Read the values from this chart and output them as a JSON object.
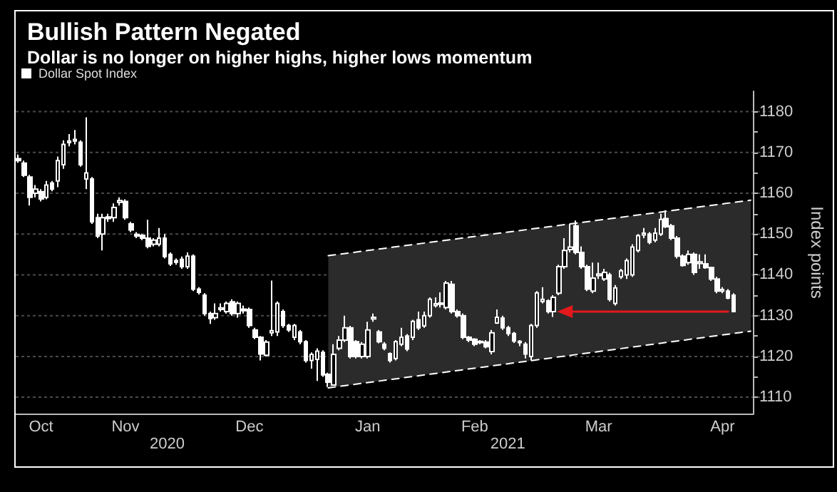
{
  "chart_data": {
    "type": "candlestick",
    "title": "Bullish Pattern Negated",
    "subtitle": "Dollar is no longer on higher highs, higher lows momentum",
    "ylabel": "Index points",
    "categories": [
      null,
      null,
      null,
      null,
      "Oct",
      null,
      null,
      null,
      null,
      null,
      null,
      null,
      null,
      null,
      null,
      null,
      null,
      null,
      null,
      "Nov",
      null,
      null,
      null,
      null,
      null,
      null,
      null,
      null,
      null,
      null,
      null,
      null,
      null,
      null,
      null,
      null,
      null,
      null,
      null,
      null,
      null,
      "Dec",
      null,
      null,
      null,
      null,
      null,
      null,
      null,
      null,
      null,
      null,
      null,
      null,
      null,
      null,
      null,
      null,
      null,
      null,
      null,
      null,
      "Jan",
      null,
      null,
      null,
      null,
      null,
      null,
      null,
      null,
      null,
      null,
      null,
      null,
      null,
      null,
      null,
      null,
      null,
      null,
      "Feb",
      null,
      null,
      null,
      null,
      null,
      null,
      null,
      null,
      null,
      null,
      null,
      null,
      null,
      null,
      null,
      null,
      null,
      null,
      null,
      null,
      null,
      "Mar",
      null,
      null,
      null,
      null,
      null,
      null,
      null,
      null,
      null,
      null,
      null,
      null,
      null,
      null,
      null,
      null,
      null,
      null,
      null,
      null,
      null,
      "Apr",
      null,
      null,
      null,
      null,
      null
    ],
    "series": [
      {
        "name": "Dollar Spot Index",
        "color": "#ffffff",
        "ohlc": [
          [
            1168.5,
            1169.5,
            1167.5,
            1168
          ],
          [
            1167.4,
            1168,
            1164,
            1164.4
          ],
          [
            1164,
            1164.5,
            1157,
            1159
          ],
          [
            1160,
            1162,
            1159,
            1161
          ],
          [
            1160.4,
            1161,
            1158,
            1158.6
          ],
          [
            1159,
            1163,
            1158.5,
            1162
          ],
          [
            1162.5,
            1163,
            1160.5,
            1161
          ],
          [
            1163,
            1169,
            1161.5,
            1168
          ],
          [
            1167,
            1173,
            1166,
            1172
          ],
          [
            1172.4,
            1174.5,
            1171.5,
            1172.8
          ],
          [
            1172.8,
            1175.5,
            1172,
            1173.2
          ],
          [
            1172.5,
            1173,
            1166.5,
            1167
          ],
          [
            1163.5,
            1178.6,
            1161,
            1165
          ],
          [
            1163.5,
            1164,
            1152.5,
            1153
          ],
          [
            1154,
            1155,
            1149,
            1149.5
          ],
          [
            1150,
            1155,
            1146,
            1154
          ],
          [
            1154.2,
            1155,
            1153,
            1153.8
          ],
          [
            1154,
            1157.5,
            1153,
            1156.5
          ],
          [
            1157.8,
            1159,
            1157,
            1158.2
          ],
          [
            1158,
            1158.5,
            1153.5,
            1154
          ],
          [
            1152.5,
            1153,
            1150.5,
            1151
          ],
          [
            1149.9,
            1150.5,
            1149,
            1149.5
          ],
          [
            1149.7,
            1150,
            1148.5,
            1149
          ],
          [
            1149,
            1153.5,
            1146.5,
            1147
          ],
          [
            1147.5,
            1149,
            1147,
            1148.5
          ],
          [
            1147.5,
            1151.5,
            1147,
            1149
          ],
          [
            1149,
            1150,
            1144,
            1144.5
          ],
          [
            1145,
            1145.5,
            1142.2,
            1142.7
          ],
          [
            1143.5,
            1144,
            1142.5,
            1143.1
          ],
          [
            1143.8,
            1144.5,
            1141.5,
            1142
          ],
          [
            1142,
            1145.5,
            1141.5,
            1144.6
          ],
          [
            1144.6,
            1145,
            1136,
            1136.5
          ],
          [
            1136.5,
            1137,
            1135.2,
            1135.7
          ],
          [
            1135,
            1135.5,
            1130,
            1130.5
          ],
          [
            1130.5,
            1131,
            1128,
            1129.3
          ],
          [
            1129.5,
            1133,
            1129,
            1130.5
          ],
          [
            1131.5,
            1133,
            1131,
            1131.9
          ],
          [
            1131,
            1133.5,
            1130.5,
            1133
          ],
          [
            1133.4,
            1134,
            1130,
            1130.5
          ],
          [
            1130.5,
            1133.5,
            1129.5,
            1133
          ],
          [
            1131.6,
            1132.5,
            1130.5,
            1131.2
          ],
          [
            1131.5,
            1132,
            1127,
            1127.6
          ],
          [
            1126.5,
            1127,
            1124.2,
            1124.7
          ],
          [
            1124.7,
            1125,
            1119,
            1120.6
          ],
          [
            1120.3,
            1124,
            1120,
            1123.5
          ],
          [
            1125.8,
            1138.6,
            1125,
            1126.3
          ],
          [
            1126,
            1133.5,
            1125,
            1133
          ],
          [
            1131,
            1131.5,
            1127,
            1127.6
          ],
          [
            1127.6,
            1128,
            1126,
            1126.5
          ],
          [
            1124.7,
            1128,
            1124,
            1127.6
          ],
          [
            1126,
            1126.5,
            1123,
            1123.6
          ],
          [
            1123.6,
            1124,
            1118.5,
            1119
          ],
          [
            1119,
            1121,
            1117,
            1120.5
          ],
          [
            1119.3,
            1122,
            1114,
            1121.3
          ],
          [
            1121,
            1121.5,
            1115,
            1115.5
          ],
          [
            1115.6,
            1116,
            1112.5,
            1113.7
          ],
          [
            1113,
            1123,
            1112.8,
            1120.5
          ],
          [
            1122,
            1125,
            1121.5,
            1124
          ],
          [
            1124,
            1130,
            1123.5,
            1127
          ],
          [
            1127,
            1127.5,
            1119.5,
            1120
          ],
          [
            1123.6,
            1124,
            1119.5,
            1120
          ],
          [
            1120,
            1123.5,
            1119.5,
            1123
          ],
          [
            1120,
            1128.5,
            1119.5,
            1126.5
          ],
          [
            1129.2,
            1130.5,
            1128.5,
            1129.6
          ],
          [
            1126,
            1126.5,
            1123.2,
            1123.6
          ],
          [
            1123,
            1123.5,
            1121.5,
            1122
          ],
          [
            1120.7,
            1121,
            1118.5,
            1119
          ],
          [
            1119.5,
            1124,
            1119,
            1123.6
          ],
          [
            1123,
            1127,
            1122.5,
            1124.7
          ],
          [
            1125,
            1125.5,
            1121.3,
            1121.8
          ],
          [
            1124.7,
            1129,
            1124,
            1128.6
          ],
          [
            1129,
            1131,
            1126.5,
            1127
          ],
          [
            1127.5,
            1131,
            1127,
            1130
          ],
          [
            1130,
            1134.5,
            1129.5,
            1134
          ],
          [
            1132.5,
            1134.5,
            1132,
            1132.9
          ],
          [
            1132.8,
            1135.7,
            1132,
            1133.1
          ],
          [
            1132,
            1138.5,
            1131.5,
            1138
          ],
          [
            1137.7,
            1138.5,
            1130.5,
            1131
          ],
          [
            1131,
            1131.5,
            1129.5,
            1130
          ],
          [
            1130,
            1130.5,
            1124.2,
            1124.7
          ],
          [
            1124.7,
            1125,
            1123.5,
            1124
          ],
          [
            1124.2,
            1124.5,
            1122.5,
            1123
          ],
          [
            1123.4,
            1124,
            1123,
            1123.7
          ],
          [
            1123.5,
            1124,
            1122,
            1122.4
          ],
          [
            1121.2,
            1126.5,
            1120.5,
            1125.8
          ],
          [
            1128.2,
            1131.5,
            1128,
            1129.6
          ],
          [
            1129.4,
            1130,
            1126.5,
            1127
          ],
          [
            1127,
            1127.5,
            1125,
            1125.6
          ],
          [
            1125.6,
            1126,
            1123.3,
            1123.8
          ],
          [
            1123.4,
            1124,
            1122.5,
            1123.7
          ],
          [
            1123,
            1123.5,
            1119.5,
            1120.6
          ],
          [
            1120,
            1128,
            1119,
            1127.6
          ],
          [
            1127.6,
            1136,
            1127,
            1135.6
          ],
          [
            1133.5,
            1137,
            1133,
            1134
          ],
          [
            1133.6,
            1134,
            1130.5,
            1131
          ],
          [
            1131,
            1135,
            1129.7,
            1134.5
          ],
          [
            1135.5,
            1142.5,
            1135,
            1142
          ],
          [
            1142,
            1149,
            1141.5,
            1146
          ],
          [
            1146.2,
            1152.5,
            1145.5,
            1146.8
          ],
          [
            1152,
            1153.3,
            1145,
            1145.5
          ],
          [
            1145.5,
            1147,
            1141.5,
            1142
          ],
          [
            1142,
            1142.5,
            1136,
            1136.5
          ],
          [
            1136,
            1143,
            1135.5,
            1139.2
          ],
          [
            1139.8,
            1143,
            1139,
            1140.2
          ],
          [
            1139,
            1141.5,
            1138.5,
            1140.6
          ],
          [
            1140,
            1140.5,
            1133.5,
            1134
          ],
          [
            1133,
            1137.5,
            1132.5,
            1136.8
          ],
          [
            1139.5,
            1141.5,
            1139,
            1141
          ],
          [
            1140,
            1144,
            1139,
            1143.5
          ],
          [
            1140,
            1147.5,
            1139.5,
            1146.8
          ],
          [
            1146,
            1150,
            1145.5,
            1149.6
          ],
          [
            1149.8,
            1151.5,
            1149,
            1150.2
          ],
          [
            1150,
            1150.5,
            1147.5,
            1148
          ],
          [
            1148.5,
            1151.5,
            1148,
            1150.2
          ],
          [
            1150,
            1155,
            1149.5,
            1153.6
          ],
          [
            1153.8,
            1155.8,
            1151.5,
            1151.8
          ],
          [
            1152,
            1152.5,
            1148.5,
            1149
          ],
          [
            1149,
            1149.5,
            1144,
            1144.6
          ],
          [
            1144.6,
            1145,
            1142,
            1142.3
          ],
          [
            1143,
            1146,
            1142.5,
            1145
          ],
          [
            1145,
            1145.5,
            1140,
            1140.6
          ],
          [
            1142.8,
            1145,
            1141.5,
            1143.2
          ],
          [
            1142.7,
            1145,
            1141.5,
            1141.8
          ],
          [
            1141.8,
            1142,
            1138.5,
            1139
          ],
          [
            1139,
            1139.5,
            1135.5,
            1136
          ],
          [
            1136,
            1137,
            1135.5,
            1136.4
          ],
          [
            1136,
            1136.5,
            1134,
            1134.3
          ],
          [
            1135,
            1135.5,
            1130.8,
            1131
          ],
          null,
          null,
          null
        ]
      },
      {
        "type": "line",
        "color": "#ffffff",
        "line_style": "dashed",
        "values": [
          null,
          null,
          null,
          null,
          null,
          null,
          null,
          null,
          null,
          null,
          null,
          null,
          null,
          null,
          null,
          null,
          null,
          null,
          null,
          null,
          null,
          null,
          null,
          null,
          null,
          null,
          null,
          null,
          null,
          null,
          null,
          null,
          null,
          null,
          null,
          null,
          null,
          null,
          null,
          null,
          null,
          null,
          null,
          null,
          null,
          null,
          null,
          null,
          null,
          null,
          null,
          null,
          null,
          null,
          null,
          1144.7,
          null,
          null,
          null,
          null,
          null,
          null,
          null,
          null,
          null,
          null,
          null,
          null,
          null,
          null,
          null,
          null,
          null,
          null,
          null,
          null,
          null,
          null,
          null,
          null,
          null,
          null,
          null,
          null,
          null,
          null,
          null,
          null,
          null,
          null,
          null,
          null,
          null,
          null,
          null,
          null,
          null,
          null,
          null,
          null,
          null,
          null,
          null,
          null,
          null,
          null,
          null,
          null,
          null,
          null,
          null,
          null,
          null,
          null,
          null,
          null,
          null,
          null,
          null,
          null,
          null,
          null,
          null,
          null,
          null,
          null,
          null,
          null,
          null,
          null,
          1158.3
        ]
      },
      {
        "type": "line",
        "color": "#ffffff",
        "line_style": "dashed",
        "values": [
          null,
          null,
          null,
          null,
          null,
          null,
          null,
          null,
          null,
          null,
          null,
          null,
          null,
          null,
          null,
          null,
          null,
          null,
          null,
          null,
          null,
          null,
          null,
          null,
          null,
          null,
          null,
          null,
          null,
          null,
          null,
          null,
          null,
          null,
          null,
          null,
          null,
          null,
          null,
          null,
          null,
          null,
          null,
          null,
          null,
          null,
          null,
          null,
          null,
          null,
          null,
          null,
          null,
          null,
          null,
          1112.3,
          null,
          null,
          null,
          null,
          null,
          null,
          null,
          null,
          null,
          null,
          null,
          null,
          null,
          null,
          null,
          null,
          null,
          null,
          null,
          null,
          null,
          null,
          null,
          null,
          null,
          null,
          null,
          null,
          null,
          null,
          null,
          null,
          null,
          null,
          null,
          null,
          null,
          null,
          null,
          null,
          null,
          null,
          null,
          null,
          null,
          null,
          null,
          null,
          null,
          null,
          null,
          null,
          null,
          null,
          null,
          null,
          null,
          null,
          null,
          null,
          null,
          null,
          null,
          null,
          null,
          null,
          null,
          null,
          null,
          null,
          null,
          null,
          null,
          null,
          1126.2
        ],
        "lower": [
          null,
          null,
          null,
          null,
          null,
          null,
          null,
          null,
          null,
          null,
          null,
          null,
          null,
          null,
          null,
          null,
          null,
          null,
          null,
          null,
          null,
          null,
          null,
          null,
          null,
          null,
          null,
          null,
          null,
          null,
          null,
          null,
          null,
          null,
          null,
          null,
          null,
          null,
          null,
          null,
          null,
          null,
          null,
          null,
          null,
          null,
          null,
          null,
          null,
          null,
          null,
          null,
          null,
          null,
          null,
          1112.3,
          null,
          null,
          null,
          null,
          null,
          null,
          null,
          null,
          null,
          null,
          null,
          null,
          null,
          null,
          null,
          null,
          null,
          null,
          null,
          null,
          null,
          null,
          null,
          null,
          null,
          null,
          null,
          null,
          null,
          null,
          null,
          null,
          null,
          null,
          null,
          null,
          null,
          null,
          null,
          null,
          null,
          null,
          null,
          null,
          null,
          null,
          null,
          null,
          null,
          null,
          null,
          null,
          null,
          null,
          null,
          null,
          null,
          null,
          null,
          null,
          null,
          null,
          null,
          null,
          null,
          null,
          null,
          null,
          null,
          null,
          null,
          null,
          null,
          null,
          1126.2
        ],
        "upper": [
          null,
          null,
          null,
          null,
          null,
          null,
          null,
          null,
          null,
          null,
          null,
          null,
          null,
          null,
          null,
          null,
          null,
          null,
          null,
          null,
          null,
          null,
          null,
          null,
          null,
          null,
          null,
          null,
          null,
          null,
          null,
          null,
          null,
          null,
          null,
          null,
          null,
          null,
          null,
          null,
          null,
          null,
          null,
          null,
          null,
          null,
          null,
          null,
          null,
          null,
          null,
          null,
          null,
          null,
          null,
          1144.7,
          null,
          null,
          null,
          null,
          null,
          null,
          null,
          null,
          null,
          null,
          null,
          null,
          null,
          null,
          null,
          null,
          null,
          null,
          null,
          null,
          null,
          null,
          null,
          null,
          null,
          null,
          null,
          null,
          null,
          null,
          null,
          null,
          null,
          null,
          null,
          null,
          null,
          null,
          null,
          null,
          null,
          null,
          null,
          null,
          null,
          null,
          null,
          null,
          null,
          null,
          null,
          null,
          null,
          null,
          null,
          null,
          null,
          null,
          null,
          null,
          null,
          null,
          null,
          null,
          null,
          null,
          null,
          null,
          null,
          null,
          null,
          null,
          null,
          null,
          1158.3
        ]
      },
      {
        "type": "line",
        "color": "#e3191c",
        "line_style": "solid",
        "marker": "triangle",
        "values": [
          null,
          null,
          null,
          null,
          null,
          null,
          null,
          null,
          null,
          null,
          null,
          null,
          null,
          null,
          null,
          null,
          null,
          null,
          null,
          null,
          null,
          null,
          null,
          null,
          null,
          null,
          null,
          null,
          null,
          null,
          null,
          null,
          null,
          null,
          null,
          null,
          null,
          null,
          null,
          null,
          null,
          null,
          null,
          null,
          null,
          null,
          null,
          null,
          null,
          null,
          null,
          null,
          null,
          null,
          null,
          null,
          null,
          null,
          null,
          null,
          null,
          null,
          null,
          null,
          null,
          null,
          null,
          null,
          null,
          null,
          null,
          null,
          null,
          null,
          null,
          null,
          null,
          null,
          null,
          null,
          null,
          null,
          null,
          null,
          null,
          null,
          null,
          null,
          null,
          null,
          null,
          null,
          null,
          null,
          null,
          null,
          null,
          1131,
          null,
          null,
          null,
          null,
          null,
          null,
          null,
          null,
          null,
          null,
          null,
          null,
          null,
          null,
          null,
          null,
          null,
          null,
          null,
          null,
          null,
          null,
          null,
          null,
          null,
          null,
          null,
          null,
          1131,
          null,
          null,
          null,
          null
        ]
      }
    ],
    "ylim": [
      1106,
      1185
    ],
    "yticks": [
      1110,
      {
        "value": 1115,
        "label": null
      },
      1120,
      {
        "value": 1125,
        "label": null
      },
      1130,
      {
        "value": 1135,
        "label": null
      },
      1140,
      {
        "value": 1145,
        "label": null
      },
      1150,
      {
        "value": 1155,
        "label": null
      },
      1160,
      {
        "value": 1165,
        "label": null
      },
      1170,
      {
        "value": 1175,
        "label": null
      },
      1180
    ],
    "grid": "y",
    "legend": "top left",
    "annotations": [
      "2020",
      "2021"
    ]
  }
}
